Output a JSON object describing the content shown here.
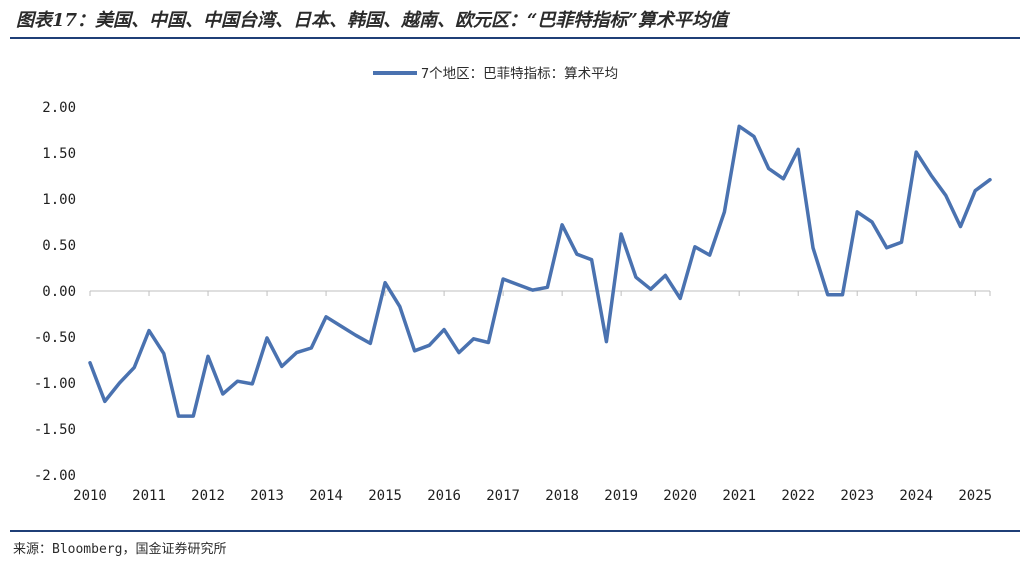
{
  "header": {
    "title": "图表17：美国、中国、中国台湾、日本、韩国、越南、欧元区：“巴菲特指标”算术平均值"
  },
  "footer": {
    "source": "来源：Bloomberg，国金证券研究所"
  },
  "colors": {
    "line": "#4a72b0",
    "rule": "#1f3f77",
    "axis": "#bfbfbf"
  },
  "chart_data": {
    "type": "line",
    "title": "",
    "xlabel": "",
    "ylabel": "",
    "ylim": [
      -2.0,
      2.0
    ],
    "yticks": [
      2.0,
      1.5,
      1.0,
      0.5,
      0.0,
      -0.5,
      -1.0,
      -1.5,
      -2.0
    ],
    "ytick_labels": [
      "2.00",
      "1.50",
      "1.00",
      "0.50",
      "0.00",
      "-0.50",
      "-1.00",
      "-1.50",
      "-2.00"
    ],
    "xlim": [
      2010.0,
      2025.25
    ],
    "xtick_labels": [
      "2010",
      "2011",
      "2012",
      "2013",
      "2014",
      "2015",
      "2016",
      "2017",
      "2018",
      "2019",
      "2020",
      "2021",
      "2022",
      "2023",
      "2024",
      "2025"
    ],
    "legend_position": "top-center",
    "grid": false,
    "series": [
      {
        "name": "7个地区：巴菲特指标：算术平均",
        "x": [
          2010.0,
          2010.25,
          2010.5,
          2010.75,
          2011.0,
          2011.25,
          2011.5,
          2011.75,
          2012.0,
          2012.25,
          2012.5,
          2012.75,
          2013.0,
          2013.25,
          2013.5,
          2013.75,
          2014.0,
          2014.25,
          2014.5,
          2014.75,
          2015.0,
          2015.25,
          2015.5,
          2015.75,
          2016.0,
          2016.25,
          2016.5,
          2016.75,
          2017.0,
          2017.25,
          2017.5,
          2017.75,
          2018.0,
          2018.25,
          2018.5,
          2018.75,
          2019.0,
          2019.25,
          2019.5,
          2019.75,
          2020.0,
          2020.25,
          2020.5,
          2020.75,
          2021.0,
          2021.25,
          2021.5,
          2021.75,
          2022.0,
          2022.25,
          2022.5,
          2022.75,
          2023.0,
          2023.25,
          2023.5,
          2023.75,
          2024.0,
          2024.25,
          2024.5,
          2024.75,
          2025.0,
          2025.25
        ],
        "values": [
          -0.78,
          -1.2,
          -1.0,
          -0.83,
          -0.43,
          -0.68,
          -1.36,
          -1.36,
          -0.71,
          -1.12,
          -0.98,
          -1.01,
          -0.51,
          -0.82,
          -0.67,
          -0.62,
          -0.28,
          -0.38,
          -0.48,
          -0.57,
          0.09,
          -0.17,
          -0.65,
          -0.59,
          -0.42,
          -0.67,
          -0.52,
          -0.56,
          0.13,
          0.07,
          0.01,
          0.04,
          0.72,
          0.4,
          0.34,
          -0.55,
          0.62,
          0.15,
          0.02,
          0.17,
          -0.08,
          0.48,
          0.39,
          0.86,
          1.79,
          1.68,
          1.33,
          1.22,
          1.54,
          0.47,
          -0.04,
          -0.04,
          0.86,
          0.75,
          0.47,
          0.53,
          1.51,
          1.26,
          1.04,
          0.7,
          1.09,
          1.21
        ]
      }
    ]
  }
}
